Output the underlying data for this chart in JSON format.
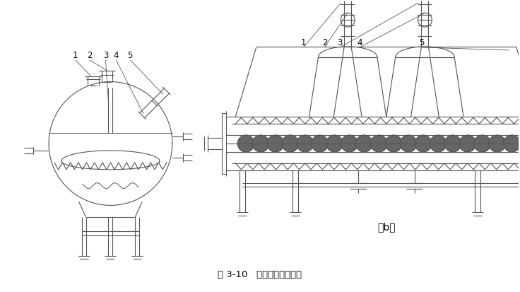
{
  "title": "图 3-10   砂石过滤器构造图",
  "label_b": "（b）",
  "bg_color": "#ffffff",
  "line_color": "#555555",
  "fig_width": 7.36,
  "fig_height": 4.14,
  "dpi": 100
}
